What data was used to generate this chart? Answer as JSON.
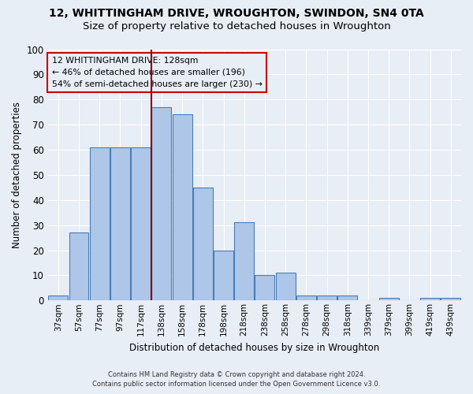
{
  "title": "12, WHITTINGHAM DRIVE, WROUGHTON, SWINDON, SN4 0TA",
  "subtitle": "Size of property relative to detached houses in Wroughton",
  "xlabel": "Distribution of detached houses by size in Wroughton",
  "ylabel": "Number of detached properties",
  "bar_labels": [
    "37sqm",
    "57sqm",
    "77sqm",
    "97sqm",
    "117sqm",
    "138sqm",
    "158sqm",
    "178sqm",
    "198sqm",
    "218sqm",
    "238sqm",
    "258sqm",
    "278sqm",
    "298sqm",
    "318sqm",
    "339sqm",
    "379sqm",
    "399sqm",
    "419sqm",
    "439sqm"
  ],
  "bar_values": [
    2,
    27,
    61,
    61,
    61,
    77,
    74,
    45,
    20,
    31,
    10,
    11,
    2,
    2,
    2,
    0,
    1,
    0,
    1,
    1
  ],
  "bar_color": "#aec6e8",
  "bar_edge_color": "#4a7db5",
  "background_color": "#e8eef5",
  "grid_color": "#ffffff",
  "property_line_color": "#8b0000",
  "annotation_box_color": "#cc0000",
  "annotation_text_line1": "12 WHITTINGHAM DRIVE: 128sqm",
  "annotation_text_line2": "← 46% of detached houses are smaller (196)",
  "annotation_text_line3": "54% of semi-detached houses are larger (230) →",
  "ylim": [
    0,
    100
  ],
  "yticks": [
    0,
    10,
    20,
    30,
    40,
    50,
    60,
    70,
    80,
    90,
    100
  ],
  "footer_line1": "Contains HM Land Registry data © Crown copyright and database right 2024.",
  "footer_line2": "Contains public sector information licensed under the Open Government Licence v3.0.",
  "title_fontsize": 10,
  "subtitle_fontsize": 9.5
}
